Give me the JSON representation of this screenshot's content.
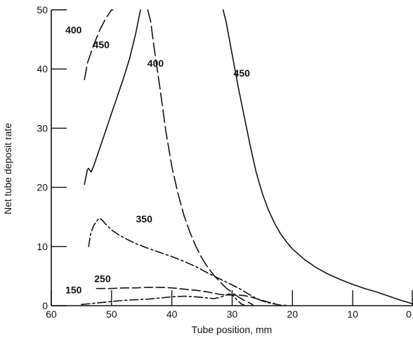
{
  "chart_data": {
    "type": "line",
    "title": "",
    "xlabel": "Tube position, mm",
    "ylabel": "Net tube deposit rate",
    "xlim": [
      60,
      0
    ],
    "ylim": [
      0,
      50
    ],
    "x_reversed": true,
    "xticks": [
      60,
      50,
      40,
      30,
      20,
      10,
      0
    ],
    "xtick_labels": [
      "60",
      "50",
      "40",
      "30",
      "20",
      "10",
      "0"
    ],
    "yticks": [
      0,
      10,
      20,
      30,
      40,
      50
    ],
    "ytick_labels": [
      "0",
      "10",
      "20",
      "30",
      "40",
      "50"
    ],
    "grid": false,
    "legend": "none",
    "series": [
      {
        "name": "400",
        "style": "long-dash",
        "label_at": [
          56.3,
          46.0
        ],
        "segments": [
          {
            "x": [
              54.5,
              54.0,
              53.0,
              52.0,
              51.0,
              50.0,
              49.8
            ],
            "y": [
              38.2,
              41.0,
              44.0,
              46.5,
              48.5,
              50.0,
              50.5
            ]
          },
          {
            "x": [
              44.0,
              43.5,
              43.0,
              42.0,
              41.0,
              40.0,
              39.0,
              38.0,
              37.0,
              36.0,
              35.0,
              34.0,
              33.0,
              32.0,
              31.0,
              30.0,
              29.0,
              28.0,
              27.0,
              26.5
            ],
            "y": [
              50.5,
              48.0,
              44.0,
              37.0,
              29.5,
              23.5,
              19.0,
              15.3,
              12.4,
              10.0,
              8.0,
              6.4,
              5.1,
              4.0,
              3.0,
              2.2,
              1.5,
              0.9,
              0.4,
              0.1
            ]
          }
        ]
      },
      {
        "name": "450",
        "style": "solid",
        "label_at": [
          51.7,
          43.5
        ],
        "segments": [
          {
            "x": [
              54.5,
              54.0,
              53.8,
              53.4,
              53.0,
              52.0,
              51.0,
              50.0,
              49.0,
              48.0,
              47.0,
              46.0,
              45.5,
              45.2
            ],
            "y": [
              20.5,
              23.0,
              23.2,
              22.6,
              23.5,
              26.5,
              29.5,
              32.5,
              35.5,
              38.5,
              41.8,
              46.0,
              48.5,
              50.5
            ]
          }
        ]
      },
      {
        "name": "400",
        "style": "solid",
        "label_at": [
          42.7,
          40.4
        ],
        "segments": []
      },
      {
        "name": "450",
        "style": "solid",
        "label_at": [
          28.4,
          38.7
        ],
        "segments": [
          {
            "x": [
              31.5,
              31.0,
              30.0,
              29.0,
              28.0,
              27.0,
              26.0,
              25.0,
              24.0,
              23.0,
              22.0,
              21.0,
              20.0,
              18.0,
              16.0,
              14.0,
              12.0,
              10.0,
              8.0,
              6.0,
              4.0,
              2.0,
              0.0
            ],
            "y": [
              50.5,
              48.0,
              42.5,
              37.0,
              32.0,
              27.0,
              22.5,
              19.0,
              16.2,
              14.0,
              12.2,
              10.8,
              9.6,
              7.8,
              6.4,
              5.3,
              4.4,
              3.6,
              2.9,
              2.3,
              1.6,
              0.9,
              0.3
            ]
          }
        ]
      },
      {
        "name": "350",
        "style": "dash-dot",
        "label_at": [
          44.6,
          14.1
        ],
        "segments": [
          {
            "x": [
              53.8,
              53.5,
              53.0,
              52.5,
              52.0,
              51.5,
              51.0,
              50.0,
              49.0,
              48.0,
              46.0,
              44.0,
              42.0,
              40.0,
              38.0,
              36.0,
              34.0,
              32.0,
              30.0,
              29.0,
              28.0,
              27.0,
              26.0,
              25.0,
              24.0,
              22.0,
              21.0
            ],
            "y": [
              10.0,
              12.0,
              13.5,
              14.3,
              14.8,
              14.4,
              13.8,
              12.8,
              12.1,
              11.5,
              10.5,
              9.7,
              9.0,
              8.3,
              7.5,
              6.6,
              5.5,
              4.5,
              3.5,
              3.0,
              2.4,
              1.8,
              1.2,
              0.8,
              0.5,
              0.1,
              0.05
            ]
          }
        ]
      },
      {
        "name": "250",
        "style": "dashed",
        "label_at": [
          51.5,
          4.0
        ],
        "segments": [
          {
            "x": [
              52.5,
              50.0,
              48.0,
              46.0,
              44.0,
              42.0,
              40.0,
              38.0,
              36.0,
              34.0,
              33.0,
              32.0,
              31.0,
              30.0,
              29.0,
              28.0,
              27.0,
              26.0,
              25.0,
              24.0,
              23.0
            ],
            "y": [
              2.9,
              2.9,
              3.0,
              3.0,
              3.1,
              3.1,
              3.0,
              2.8,
              2.6,
              2.3,
              2.1,
              1.9,
              1.8,
              1.8,
              1.8,
              1.7,
              1.5,
              1.2,
              0.9,
              0.6,
              0.4
            ]
          }
        ]
      },
      {
        "name": "150",
        "style": "dash-dot",
        "label_at": [
          56.3,
          2.1
        ],
        "segments": [
          {
            "x": [
              55.0,
              54.0,
              52.0,
              50.0,
              48.0,
              46.0,
              44.0,
              42.0,
              40.0,
              38.0,
              36.0,
              34.0,
              33.0,
              32.0,
              31.0,
              30.5,
              30.0,
              29.0,
              28.5,
              28.0
            ],
            "y": [
              0.2,
              0.3,
              0.5,
              0.7,
              0.9,
              1.0,
              1.1,
              1.3,
              1.5,
              1.6,
              1.5,
              1.3,
              1.2,
              1.4,
              1.8,
              2.0,
              1.8,
              0.8,
              0.3,
              0.1
            ]
          }
        ]
      }
    ]
  }
}
